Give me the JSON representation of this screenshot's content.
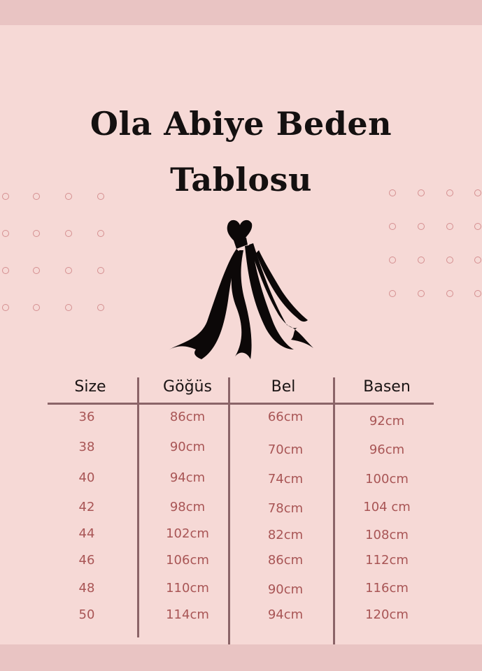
{
  "title_line1": "Ola Abiye Beden",
  "title_line2": "Tablosu",
  "logo_icon": "dress-icon",
  "colors": {
    "background": "#f6d9d6",
    "band": "#e9c4c3",
    "value_text": "#a85555",
    "lines": "#8b6468",
    "dots": "#d48f90"
  },
  "table": {
    "headers": [
      "Size",
      "Göğüs",
      "Bel",
      "Basen"
    ],
    "rows": [
      [
        "36",
        "86cm",
        "66cm",
        "92cm"
      ],
      [
        "38",
        "90cm",
        "70cm",
        "96cm"
      ],
      [
        "40",
        "94cm",
        "74cm",
        "100cm"
      ],
      [
        "42",
        "98cm",
        "78cm",
        "104 cm"
      ],
      [
        "44",
        "102cm",
        "82cm",
        "108cm"
      ],
      [
        "46",
        "106cm",
        "86cm",
        "112cm"
      ],
      [
        "48",
        "110cm",
        "90cm",
        "116cm"
      ],
      [
        "50",
        "114cm",
        "94cm",
        "120cm"
      ]
    ]
  }
}
